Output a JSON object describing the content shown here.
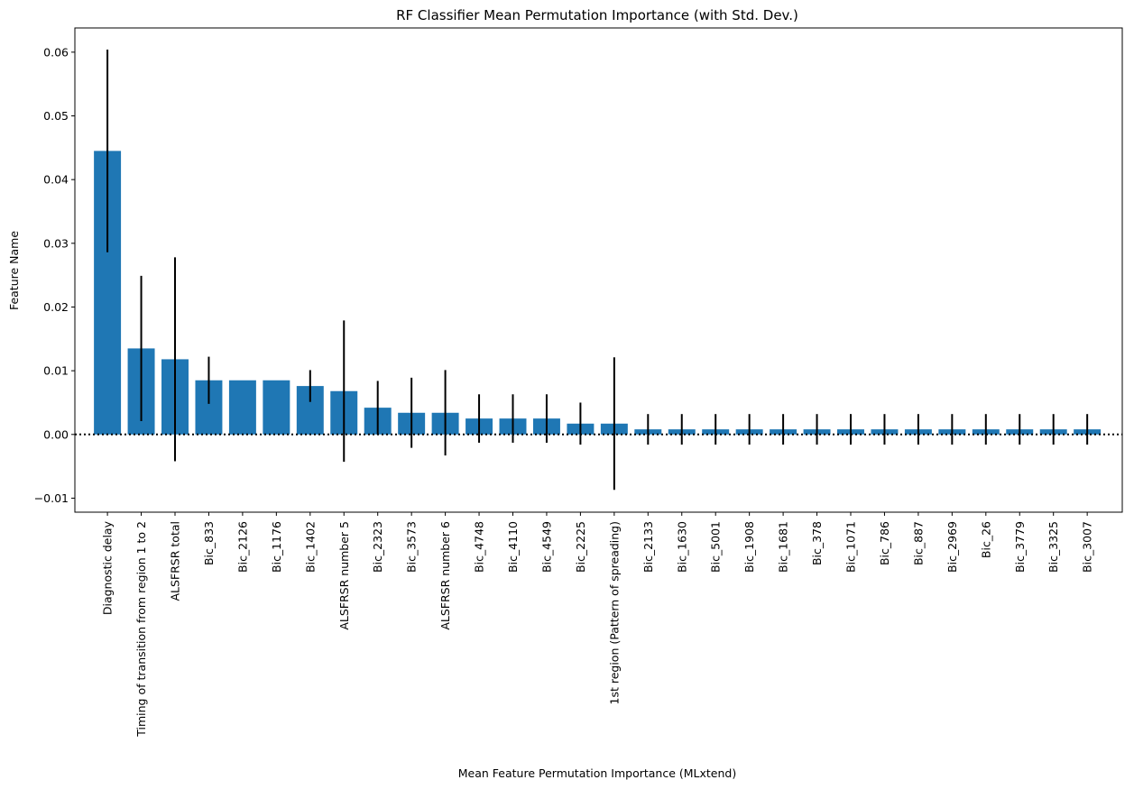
{
  "chart_data": {
    "type": "bar",
    "title": "RF Classifier Mean Permutation Importance (with Std. Dev.)",
    "xlabel": "Mean Feature Permutation Importance (MLxtend)",
    "ylabel": "Feature Name",
    "categories": [
      "Diagnostic delay",
      "Timing of transition from region 1 to 2",
      "ALSFRSR total",
      "Bic_833",
      "Bic_2126",
      "Bic_1176",
      "Bic_1402",
      "ALSFRSR number 5",
      "Bic_2323",
      "Bic_3573",
      "ALSFRSR number 6",
      "Bic_4748",
      "Bic_4110",
      "Bic_4549",
      "Bic_2225",
      "1st region (Pattern of spreading)",
      "Bic_2133",
      "Bic_1630",
      "Bic_5001",
      "Bic_1908",
      "Bic_1681",
      "Bic_378",
      "Bic_1071",
      "Bic_786",
      "Bic_887",
      "Bic_2969",
      "Bic_26",
      "Bic_3779",
      "Bic_3325",
      "Bic_3007"
    ],
    "values": [
      0.0445,
      0.0135,
      0.0118,
      0.0085,
      0.0085,
      0.0085,
      0.0076,
      0.0068,
      0.0042,
      0.0034,
      0.0034,
      0.0025,
      0.0025,
      0.0025,
      0.0017,
      0.0017,
      0.0008,
      0.0008,
      0.0008,
      0.0008,
      0.0008,
      0.0008,
      0.0008,
      0.0008,
      0.0008,
      0.0008,
      0.0008,
      0.0008,
      0.0008,
      0.0008
    ],
    "std": [
      0.0159,
      0.0114,
      0.016,
      0.0037,
      0.0,
      0.0,
      0.0025,
      0.0111,
      0.0042,
      0.0055,
      0.0067,
      0.0038,
      0.0038,
      0.0038,
      0.0033,
      0.0104,
      0.0024,
      0.0024,
      0.0024,
      0.0024,
      0.0024,
      0.0024,
      0.0024,
      0.0024,
      0.0024,
      0.0024,
      0.0024,
      0.0024,
      0.0024,
      0.0024
    ],
    "ylim": [
      -0.0122,
      0.0638
    ],
    "yticks": [
      -0.01,
      0.0,
      0.01,
      0.02,
      0.03,
      0.04,
      0.05,
      0.06
    ],
    "ytick_labels": [
      "−0.01",
      "0.00",
      "0.01",
      "0.02",
      "0.03",
      "0.04",
      "0.05",
      "0.06"
    ],
    "reference_line": {
      "y": 0.0,
      "style": "dotted"
    },
    "grid": false,
    "legend": "none",
    "colors": {
      "bar": "#1f77b4",
      "error_bar": "#000000",
      "reference_line": "#000000"
    }
  }
}
